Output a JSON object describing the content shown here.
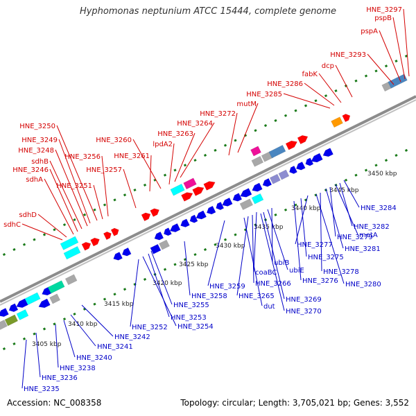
{
  "title": "Hyphomonas neptunium ATCC 15444, complete genome",
  "footer": {
    "accession_label": "Accession:",
    "accession": "NC_008358",
    "topology_label": "Topology:",
    "topology": "circular",
    "length_label": "Length:",
    "length": "3,705,021 bp",
    "genes_label": "Genes:",
    "genes": "3,552"
  },
  "colors": {
    "label_red": "#d40000",
    "label_blue": "#0000c8",
    "tick_green": "#1a7a1a",
    "backbone": "#8c8c8c",
    "gene_red": "#ff0000",
    "gene_blue": "#0000ee",
    "gene_cyan": "#00ffff",
    "gene_magenta": "#ee1199",
    "gene_gray": "#a8a8a8",
    "gene_steel": "#4a86c0",
    "gene_teal": "#00d8a0",
    "gene_olive": "#7a9a2a",
    "gene_khaki": "#c8c890",
    "gene_orange": "#ff9900",
    "gene_pink": "#ff8080",
    "gene_lavender": "#8c8cd0"
  },
  "kbp_labels": [
    "3405 kbp",
    "3410 kbp",
    "3415 kbp",
    "3420 kbp",
    "3425 kbp",
    "3430 kbp",
    "3435 kbp",
    "3440 kbp",
    "3445 kbp",
    "3450 kbp"
  ],
  "top_labels": [
    "HNE_3297",
    "pspB",
    "pspA",
    "HNE_3293",
    "dcp",
    "fabK",
    "HNE_3286",
    "HNE_3285",
    "mutM",
    "HNE_3272",
    "HNE_3264",
    "HNE_3263",
    "lpdA2",
    "HNE_3260",
    "HNE_3261",
    "HNE_3250",
    "HNE_3249",
    "HNE_3248",
    "HNE_3256",
    "sdhB",
    "HNE_3246",
    "HNE_3257",
    "sdhA",
    "HNE_3251",
    "sdhD",
    "sdhC"
  ],
  "bottom_labels": [
    "HNE_3284",
    "HNE_3282",
    "metA",
    "HNE_3279",
    "HNE_3281",
    "HNE_3277",
    "HNE_3275",
    "ubiB",
    "ubiE",
    "HNE_3278",
    "HNE_3276",
    "HNE_3280",
    "coaBC",
    "HNE_3266",
    "HNE_3259",
    "HNE_3258",
    "HNE_3265",
    "dut",
    "HNE_3269",
    "HNE_3270",
    "HNE_3255",
    "HNE_3253",
    "HNE_3254",
    "HNE_3252",
    "HNE_3242",
    "HNE_3241",
    "HNE_3240",
    "HNE_3238",
    "HNE_3236",
    "HNE_3235"
  ]
}
